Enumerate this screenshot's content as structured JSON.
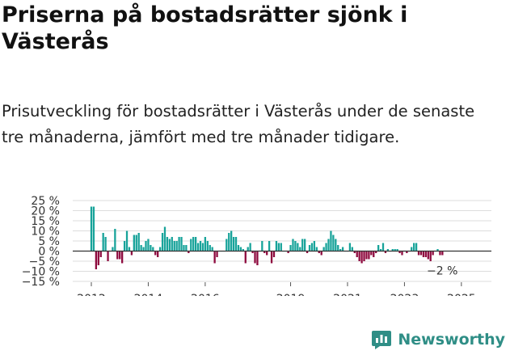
{
  "header": {
    "title": "Priserna på bostadsrätter sjönk i Västerås",
    "subtitle": "Prisutveckling för bostadsrätter i Västerås under de senaste tre månaderna, jämfört med tre månader tidigare."
  },
  "brand": {
    "name": "Newsworthy",
    "icon": "bar-chart-logo-icon"
  },
  "colors": {
    "positive": "#18a39a",
    "negative": "#8e0a3e",
    "grid": "#dddddd",
    "zero": "#333333"
  },
  "chart_data": {
    "type": "bar",
    "title": "Priserna på bostadsrätter sjönk i Västerås",
    "xlabel": "",
    "ylabel": "",
    "ylim": [
      -15,
      25
    ],
    "y_ticks": [
      25,
      20,
      15,
      10,
      5,
      0,
      -5,
      -10,
      -15
    ],
    "y_tick_labels": [
      "25 %",
      "20 %",
      "15 %",
      "10 %",
      "5 %",
      "0 %",
      "−5 %",
      "−10 %",
      "−15 %"
    ],
    "x_ticks": [
      "2012",
      "2014",
      "2016",
      "2019",
      "2021",
      "2023",
      "2025"
    ],
    "start": "2012-01",
    "unit": "month",
    "values": [
      22,
      22,
      -9,
      -7,
      -3,
      9,
      7,
      -5,
      0,
      2,
      11,
      -4,
      -4,
      -6,
      5,
      10,
      2,
      -2,
      8,
      8,
      9,
      3,
      2,
      5,
      6,
      3,
      2,
      -2,
      -3,
      2,
      9,
      12,
      7,
      6,
      7,
      5,
      5,
      7,
      7,
      3,
      3,
      -1,
      6,
      7,
      7,
      4,
      5,
      4,
      7,
      5,
      3,
      2,
      -6,
      -3,
      0,
      0,
      0,
      6,
      9,
      10,
      7,
      7,
      3,
      2,
      1,
      -6,
      2,
      4,
      -1,
      -6,
      -7,
      0,
      5,
      -1,
      -2,
      5,
      -6,
      -3,
      5,
      4,
      4,
      0,
      0,
      -1,
      3,
      6,
      5,
      4,
      2,
      6,
      6,
      -1,
      3,
      4,
      5,
      2,
      -1,
      -2,
      2,
      4,
      6,
      10,
      8,
      6,
      3,
      1,
      2,
      0,
      0,
      4,
      2,
      -1,
      -3,
      -5,
      -6,
      -5,
      -4,
      -4,
      -2,
      -3,
      -1,
      3,
      1,
      4,
      -1,
      1,
      0,
      1,
      1,
      1,
      -1,
      -2,
      0,
      -1,
      0,
      2,
      4,
      4,
      -2,
      -2,
      -3,
      -3,
      -4,
      -5,
      -2,
      0,
      1,
      -2,
      -2
    ],
    "annotations": [
      {
        "text": "−2 %",
        "at": "last"
      }
    ]
  }
}
